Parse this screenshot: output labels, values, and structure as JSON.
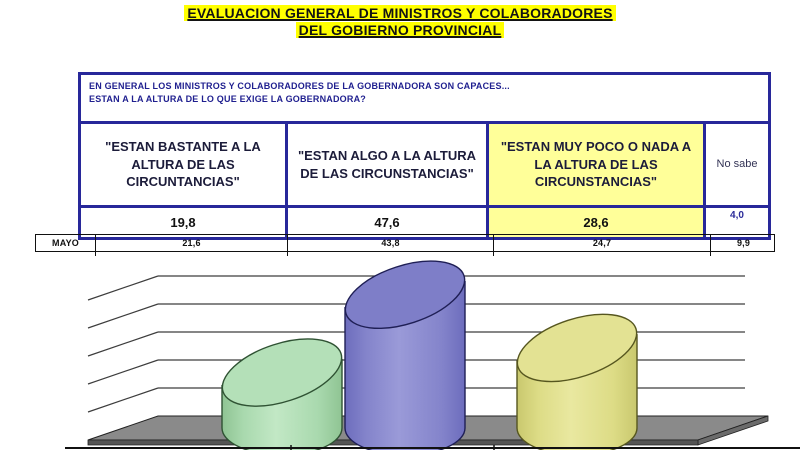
{
  "title": {
    "line1": "EVALUACION GENERAL DE MINISTROS Y COLABORADORES",
    "line2": "DEL GOBIERNO PROVINCIAL"
  },
  "survey_table": {
    "question_line1": "EN GENERAL LOS MINISTROS Y COLABORADORES DE LA GOBERNADORA SON CAPACES...",
    "question_line2": "ESTAN A LA ALTURA DE LO QUE EXIGE LA GOBERNADORA?",
    "columns": [
      {
        "label": "\"ESTAN BASTANTE A LA ALTURA DE LAS CIRCUNTANCIAS\"",
        "value": "19,8",
        "highlight": false
      },
      {
        "label": "\"ESTAN ALGO A LA ALTURA DE LAS CIRCUNSTANCIAS\"",
        "value": "47,6",
        "highlight": false
      },
      {
        "label": "\"ESTAN MUY POCO O NADA A LA ALTURA DE LAS CIRCUNSTANCIAS\"",
        "value": "28,6",
        "highlight": true
      },
      {
        "label": "No sabe",
        "value": "4,0",
        "highlight": false
      }
    ]
  },
  "mayo_row": {
    "label": "MAYO",
    "values": [
      "21,6",
      "43,8",
      "24,7",
      "9,9"
    ]
  },
  "chart_data": {
    "type": "bar",
    "subtype": "3d-cylinder",
    "title": "",
    "categories": [
      "Estan bastante a la altura",
      "Estan algo a la altura",
      "Estan muy poco o nada a la altura"
    ],
    "values": [
      19.8,
      47.6,
      28.6
    ],
    "ylim": [
      0,
      50
    ],
    "gridline_step": 10,
    "grid": true,
    "legend": "none",
    "floor_color": "#8a8a8a",
    "series_colors": [
      {
        "light": "#c2e8c5",
        "body": "#a9d9ae",
        "dark": "#8fc493",
        "top": "#b4e0b8",
        "stroke": "#2f5233"
      },
      {
        "light": "#9a9ad8",
        "body": "#8484cb",
        "dark": "#6d6dbd",
        "top": "#7e7ec8",
        "stroke": "#1f1f55"
      },
      {
        "light": "#e9e8a0",
        "body": "#dddc86",
        "dark": "#c9c86e",
        "top": "#e3e293",
        "stroke": "#56561f"
      }
    ]
  },
  "colors": {
    "table_border": "#28289a",
    "cell_highlight": "#ffff99",
    "title_highlight": "#ffff00",
    "question_text": "#1f1f8f"
  }
}
